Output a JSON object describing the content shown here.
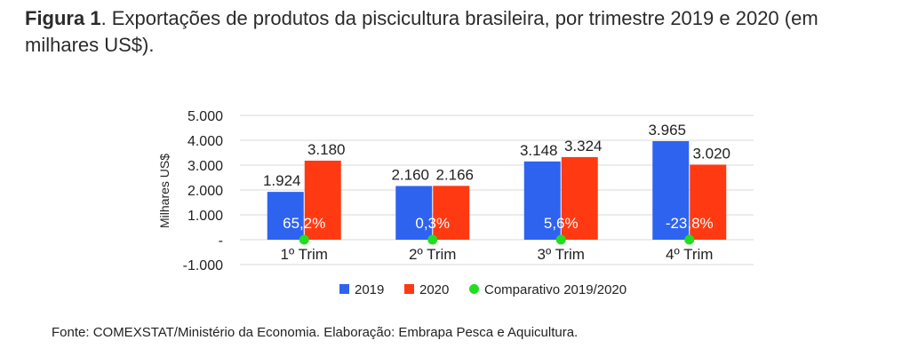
{
  "caption": {
    "bold": "Figura 1",
    "text": ". Exportações de produtos da piscicultura brasileira, por trimestre 2019 e 2020 (em milhares US$)."
  },
  "source": "Fonte: COMEXSTAT/Ministério da Economia. Elaboração: Embrapa Pesca e Aquicultura.",
  "colors": {
    "s2019": "#2e63f0",
    "s2020": "#ff3a12",
    "comparativo": "#22dd22",
    "grid": "#d9d9d9"
  },
  "chart_data": {
    "type": "bar",
    "categories": [
      "1º Trim",
      "2º Trim",
      "3º Trim",
      "4º Trim"
    ],
    "series": [
      {
        "name": "2019",
        "values": [
          1924,
          2160,
          3148,
          3965
        ],
        "labels": [
          "1.924",
          "2.160",
          "3.148",
          "3.965"
        ]
      },
      {
        "name": "2020",
        "values": [
          3180,
          2166,
          3324,
          3020
        ],
        "labels": [
          "3.180",
          "2.166",
          "3.324",
          "3.020"
        ]
      },
      {
        "name": "Comparativo 2019/2020",
        "values": [
          65.2,
          0.3,
          5.6,
          -23.8
        ],
        "labels": [
          "65,2%",
          "0,3%",
          "5,6%",
          "-23,8%"
        ]
      }
    ],
    "ylabel": "Milhares US$",
    "ylim": [
      -1000,
      5000
    ],
    "yticks": [
      5000,
      4000,
      3000,
      2000,
      1000,
      0,
      -1000
    ],
    "ytick_labels": [
      "5.000",
      "4.000",
      "3.000",
      "2.000",
      "1.000",
      "-",
      "-1.000"
    ],
    "grid": true,
    "legend": "bottom"
  }
}
